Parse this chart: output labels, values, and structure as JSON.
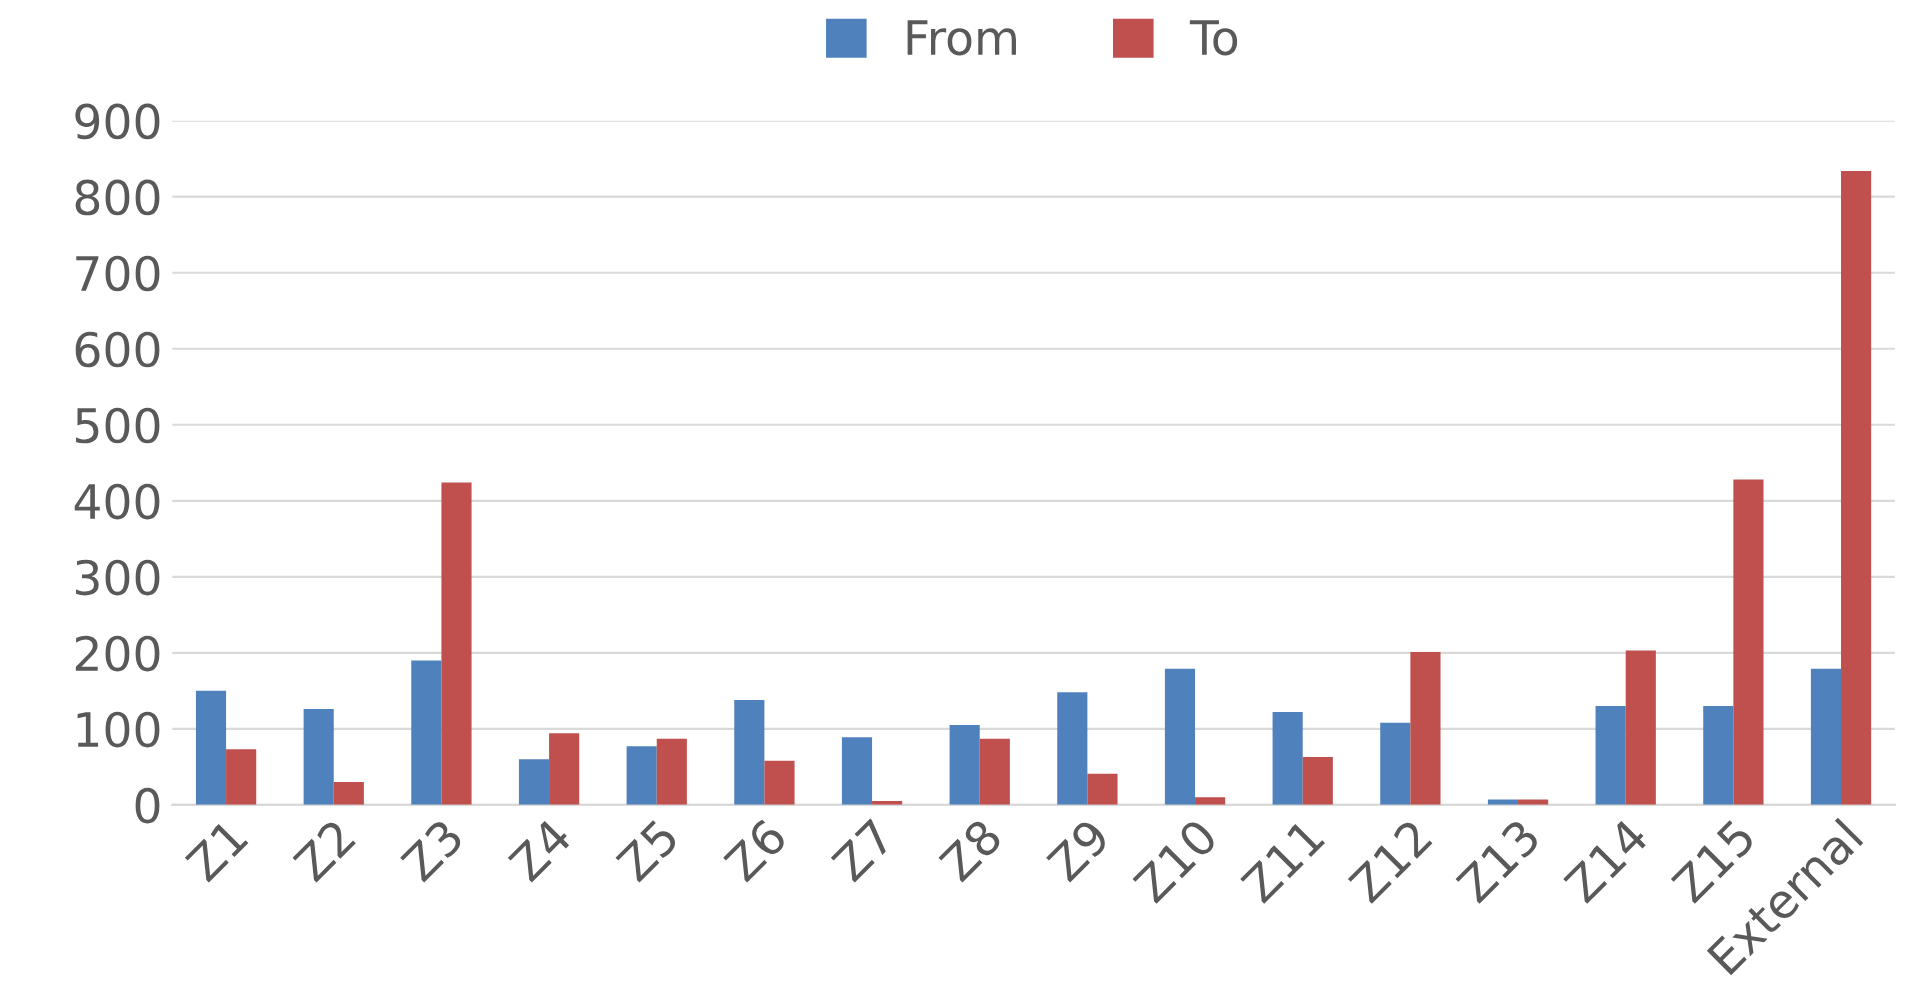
{
  "chart_data": {
    "type": "bar",
    "categories": [
      "Z1",
      "Z2",
      "Z3",
      "Z4",
      "Z5",
      "Z6",
      "Z7",
      "Z8",
      "Z9",
      "Z10",
      "Z11",
      "Z12",
      "Z13",
      "Z14",
      "Z15",
      "External"
    ],
    "series": [
      {
        "name": "From",
        "color": "#4f81bd",
        "values": [
          150,
          126,
          190,
          60,
          77,
          138,
          89,
          105,
          148,
          179,
          122,
          108,
          7,
          130,
          130,
          179
        ]
      },
      {
        "name": "To",
        "color": "#c0504d",
        "values": [
          73,
          30,
          424,
          94,
          87,
          58,
          5,
          87,
          41,
          10,
          63,
          201,
          7,
          203,
          428,
          834
        ]
      }
    ],
    "ylim": [
      0,
      900
    ],
    "yticks": [
      0,
      100,
      200,
      300,
      400,
      500,
      600,
      700,
      800,
      900
    ],
    "grid": "y",
    "legend": "top"
  }
}
